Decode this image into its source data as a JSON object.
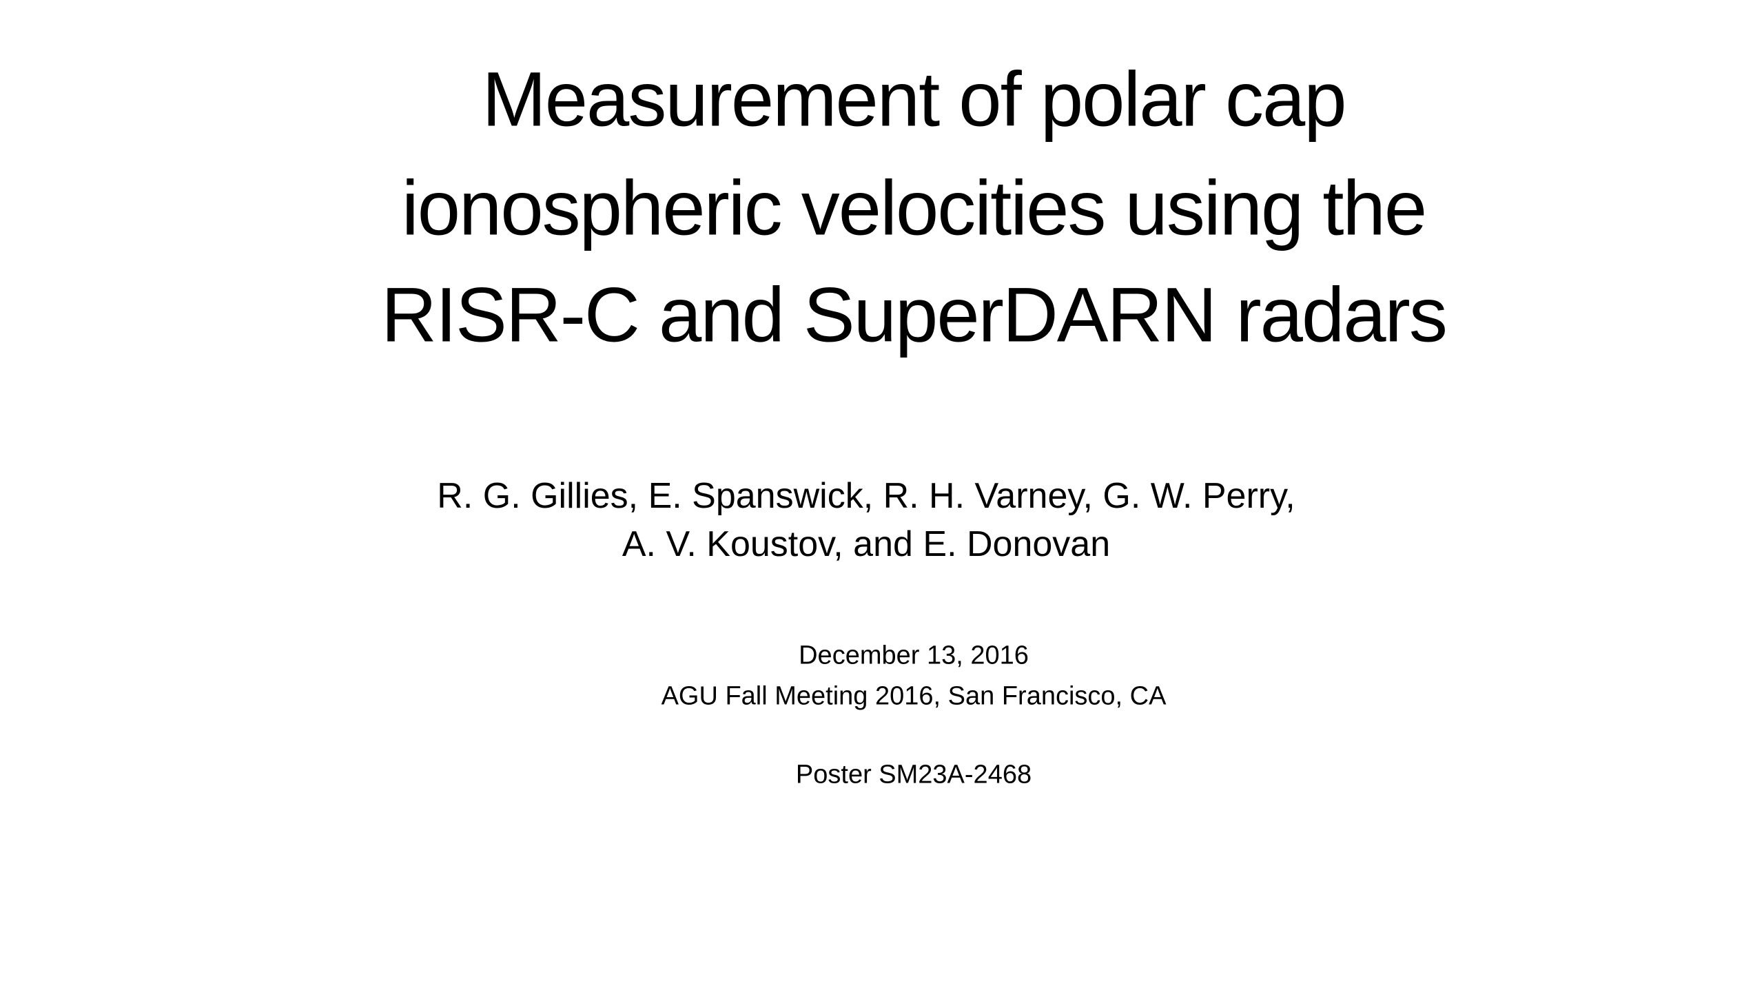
{
  "title": {
    "lines": [
      "Measurement of polar cap",
      "ionospheric velocities using the",
      "RISR-C and SuperDARN radars"
    ]
  },
  "authors": {
    "lines": [
      "R. G. Gillies, E. Spanswick, R. H. Varney, G. W. Perry,",
      "A. V. Koustov, and E. Donovan"
    ]
  },
  "event": {
    "date": "December 13, 2016",
    "meeting": "AGU Fall Meeting 2016, San Francisco, CA",
    "poster": "Poster SM23A-2468"
  }
}
